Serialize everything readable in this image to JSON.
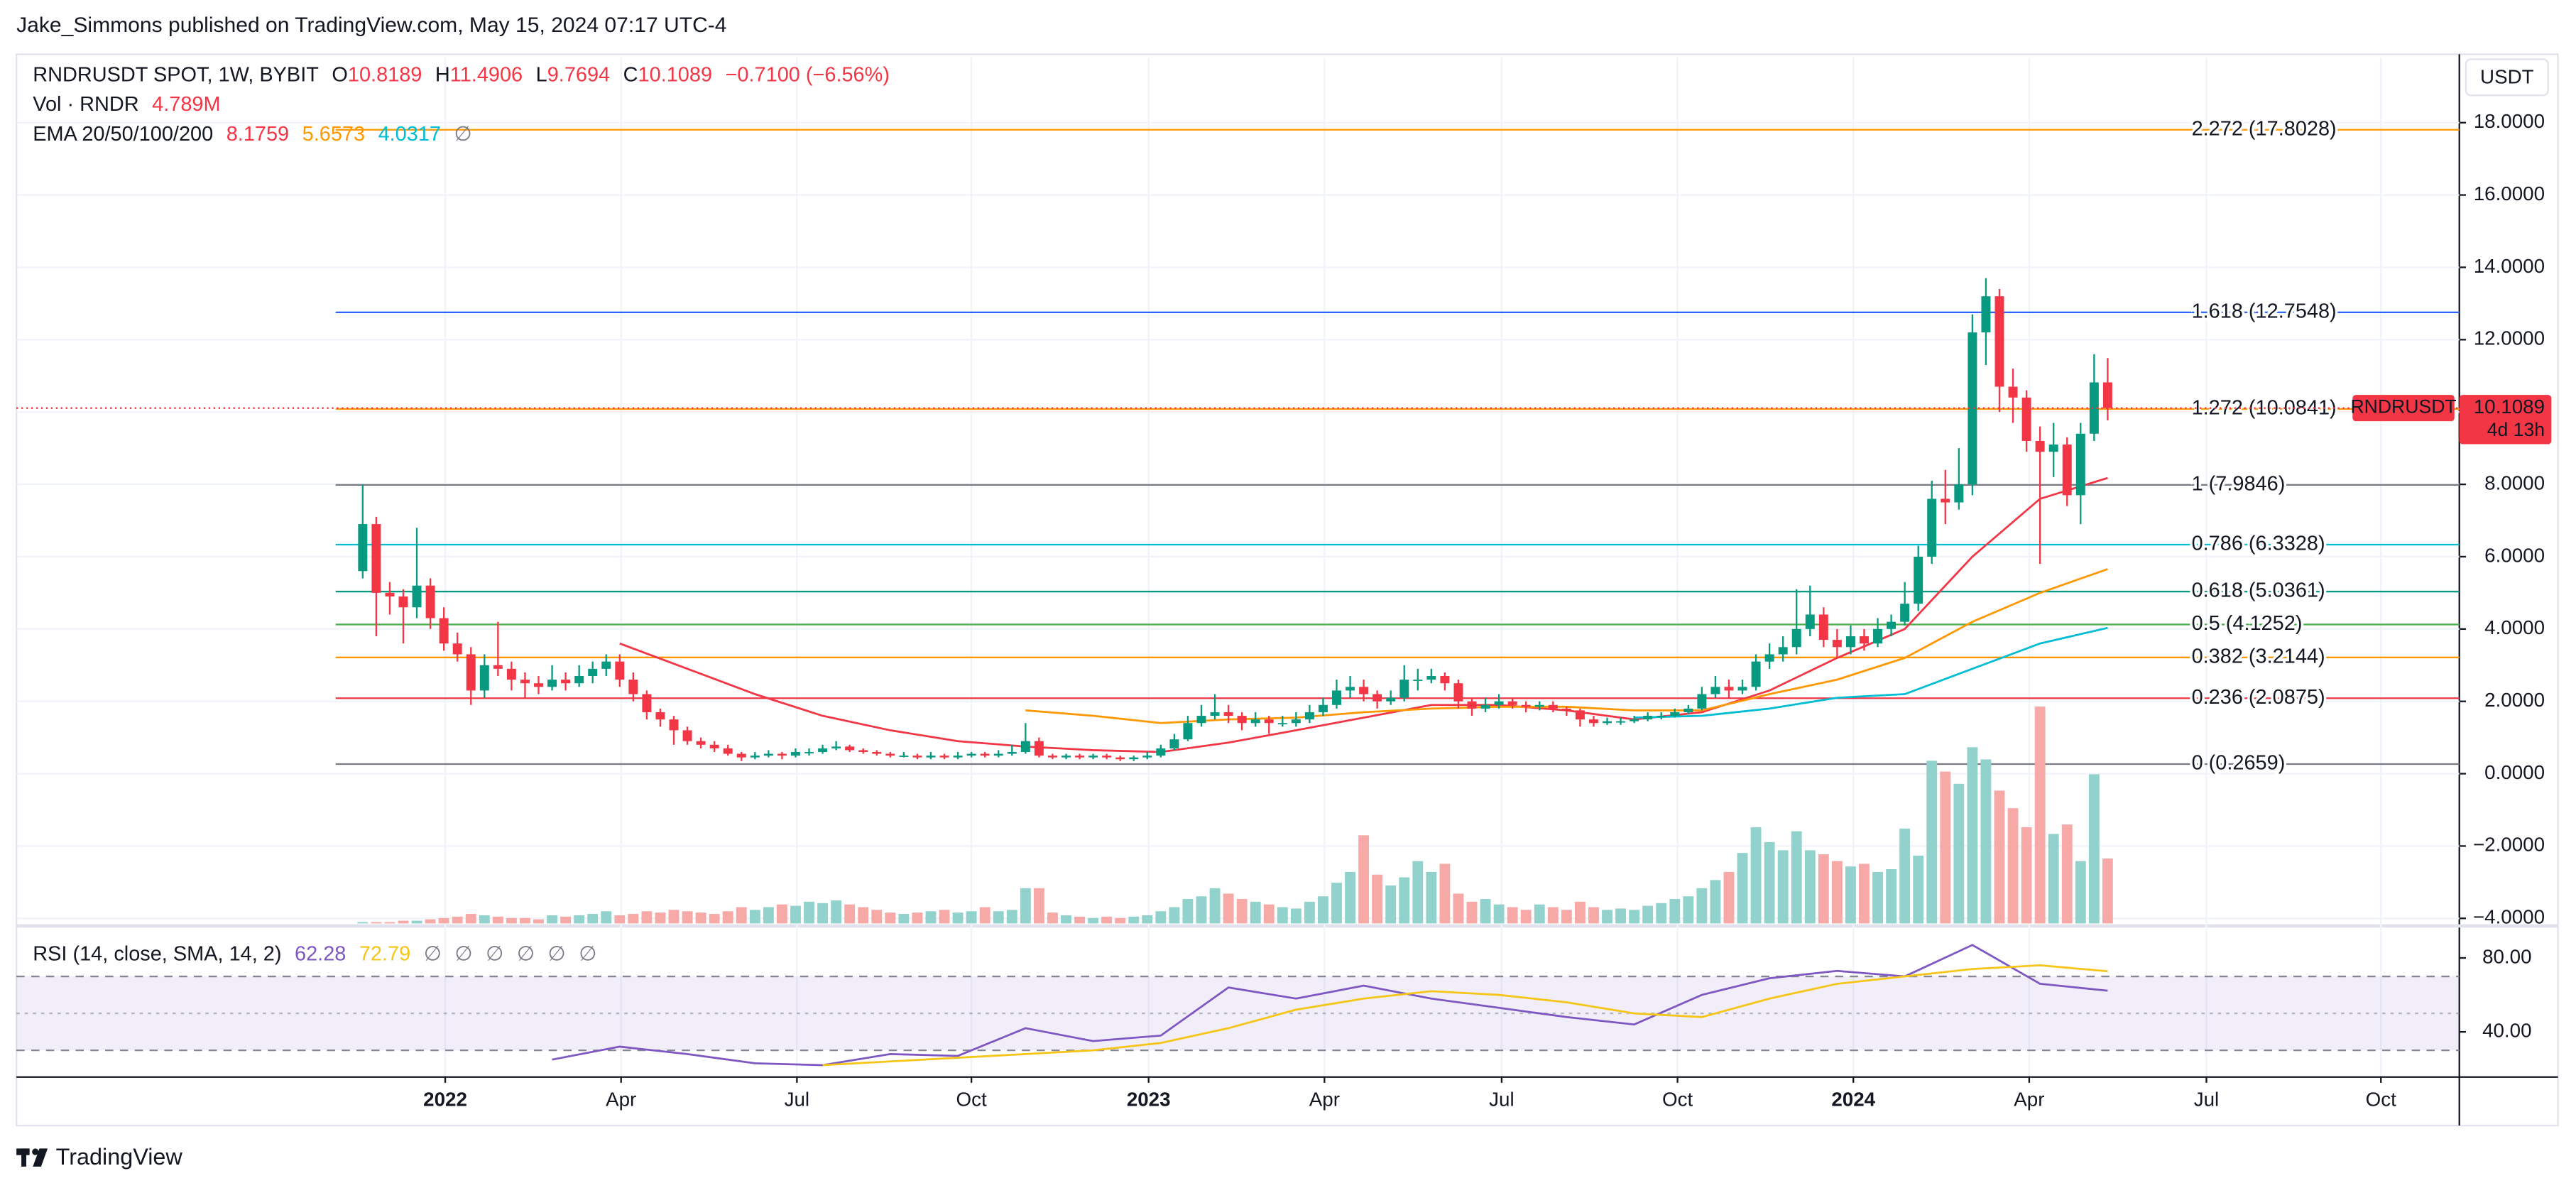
{
  "header": {
    "byline": "Jake_Simmons published on TradingView.com, May 15, 2024 07:17 UTC-4"
  },
  "chart_data": {
    "type": "candlestick",
    "title": "RNDRUSDT SPOT, 1W, BYBIT",
    "ohlc_prefixes": [
      "O",
      "H",
      "L",
      "C"
    ],
    "change": "−0.7100 (−6.56%)",
    "currency": "USDT",
    "symbol": "RNDRUSDT",
    "countdown": "4d 13h",
    "up_color": "#089981",
    "down_color": "#f23645",
    "volume_up_color": "#92d2cc",
    "volume_down_color": "#f7a9a7",
    "grid": true,
    "xlim": [
      -25.6,
      155
    ],
    "xticks": [
      {
        "value": 6.1,
        "label": "2022"
      },
      {
        "value": 19.1,
        "label": "Apr"
      },
      {
        "value": 32.1,
        "label": "Jul"
      },
      {
        "value": 45,
        "label": "Oct"
      },
      {
        "value": 58.1,
        "label": "2023"
      },
      {
        "value": 71.1,
        "label": "Apr"
      },
      {
        "value": 84.2,
        "label": "Jul"
      },
      {
        "value": 97.2,
        "label": "Oct"
      },
      {
        "value": 110.2,
        "label": "2024"
      },
      {
        "value": 123.2,
        "label": "Apr"
      },
      {
        "value": 136.3,
        "label": "Jul"
      },
      {
        "value": 149.2,
        "label": "Oct"
      }
    ],
    "ylim": [
      -4.14,
      19.8
    ],
    "yticks": [
      {
        "value": -4,
        "label": "−4.0000"
      },
      {
        "value": -2,
        "label": "−2.0000"
      },
      {
        "value": 0,
        "label": "0.0000"
      },
      {
        "value": 2,
        "label": "2.0000"
      },
      {
        "value": 4,
        "label": "4.0000"
      },
      {
        "value": 6,
        "label": "6.0000"
      },
      {
        "value": 8,
        "label": "8.0000"
      },
      {
        "value": 10,
        "label": "10.0000"
      },
      {
        "value": 12,
        "label": "12.0000"
      },
      {
        "value": 14,
        "label": "14.0000"
      },
      {
        "value": 16,
        "label": "16.0000"
      },
      {
        "value": 18,
        "label": "18.0000"
      }
    ],
    "ohlc": [
      [
        5.6,
        8.0,
        5.4,
        6.9
      ],
      [
        6.9,
        7.1,
        3.8,
        5.0
      ],
      [
        5.0,
        5.3,
        4.4,
        4.9
      ],
      [
        4.9,
        5.1,
        3.6,
        4.6
      ],
      [
        4.6,
        6.8,
        4.3,
        5.2
      ],
      [
        5.2,
        5.4,
        4.0,
        4.3
      ],
      [
        4.3,
        4.6,
        3.4,
        3.6
      ],
      [
        3.6,
        3.9,
        3.1,
        3.3
      ],
      [
        3.3,
        3.5,
        1.9,
        2.3
      ],
      [
        2.3,
        3.3,
        2.1,
        3.0
      ],
      [
        3.0,
        4.2,
        2.7,
        2.9
      ],
      [
        2.9,
        3.1,
        2.3,
        2.6
      ],
      [
        2.6,
        2.8,
        2.1,
        2.5
      ],
      [
        2.5,
        2.7,
        2.2,
        2.4
      ],
      [
        2.4,
        3.0,
        2.3,
        2.6
      ],
      [
        2.6,
        2.8,
        2.3,
        2.5
      ],
      [
        2.5,
        3.0,
        2.4,
        2.7
      ],
      [
        2.7,
        3.1,
        2.5,
        2.9
      ],
      [
        2.9,
        3.3,
        2.7,
        3.1
      ],
      [
        3.1,
        3.3,
        2.4,
        2.6
      ],
      [
        2.6,
        2.8,
        2.0,
        2.2
      ],
      [
        2.2,
        2.3,
        1.5,
        1.7
      ],
      [
        1.7,
        1.8,
        1.3,
        1.5
      ],
      [
        1.5,
        1.6,
        0.8,
        1.2
      ],
      [
        1.2,
        1.3,
        0.8,
        0.9
      ],
      [
        0.9,
        1.0,
        0.7,
        0.8
      ],
      [
        0.8,
        0.9,
        0.6,
        0.7
      ],
      [
        0.7,
        0.8,
        0.5,
        0.55
      ],
      [
        0.55,
        0.6,
        0.35,
        0.45
      ],
      [
        0.45,
        0.6,
        0.4,
        0.5
      ],
      [
        0.5,
        0.65,
        0.45,
        0.55
      ],
      [
        0.55,
        0.6,
        0.4,
        0.5
      ],
      [
        0.5,
        0.7,
        0.45,
        0.6
      ],
      [
        0.6,
        0.7,
        0.5,
        0.6
      ],
      [
        0.6,
        0.8,
        0.55,
        0.7
      ],
      [
        0.7,
        0.9,
        0.65,
        0.75
      ],
      [
        0.75,
        0.8,
        0.6,
        0.65
      ],
      [
        0.65,
        0.7,
        0.55,
        0.6
      ],
      [
        0.6,
        0.65,
        0.5,
        0.55
      ],
      [
        0.55,
        0.6,
        0.45,
        0.5
      ],
      [
        0.5,
        0.6,
        0.45,
        0.5
      ],
      [
        0.5,
        0.55,
        0.4,
        0.45
      ],
      [
        0.45,
        0.6,
        0.4,
        0.5
      ],
      [
        0.5,
        0.55,
        0.4,
        0.45
      ],
      [
        0.45,
        0.6,
        0.4,
        0.5
      ],
      [
        0.5,
        0.6,
        0.45,
        0.55
      ],
      [
        0.55,
        0.6,
        0.45,
        0.5
      ],
      [
        0.5,
        0.65,
        0.45,
        0.55
      ],
      [
        0.55,
        0.8,
        0.5,
        0.6
      ],
      [
        0.6,
        1.4,
        0.55,
        0.9
      ],
      [
        0.9,
        1.0,
        0.45,
        0.5
      ],
      [
        0.5,
        0.55,
        0.4,
        0.45
      ],
      [
        0.45,
        0.55,
        0.4,
        0.5
      ],
      [
        0.5,
        0.55,
        0.4,
        0.45
      ],
      [
        0.45,
        0.55,
        0.4,
        0.5
      ],
      [
        0.5,
        0.55,
        0.4,
        0.45
      ],
      [
        0.45,
        0.5,
        0.35,
        0.4
      ],
      [
        0.4,
        0.5,
        0.35,
        0.45
      ],
      [
        0.45,
        0.6,
        0.4,
        0.5
      ],
      [
        0.5,
        0.8,
        0.45,
        0.7
      ],
      [
        0.7,
        1.1,
        0.65,
        0.95
      ],
      [
        0.95,
        1.6,
        0.9,
        1.4
      ],
      [
        1.4,
        1.9,
        1.3,
        1.6
      ],
      [
        1.6,
        2.2,
        1.5,
        1.7
      ],
      [
        1.7,
        1.9,
        1.4,
        1.6
      ],
      [
        1.6,
        1.7,
        1.2,
        1.4
      ],
      [
        1.4,
        1.7,
        1.3,
        1.5
      ],
      [
        1.5,
        1.6,
        1.1,
        1.4
      ],
      [
        1.4,
        1.6,
        1.3,
        1.4
      ],
      [
        1.4,
        1.7,
        1.3,
        1.5
      ],
      [
        1.5,
        1.9,
        1.4,
        1.7
      ],
      [
        1.7,
        2.1,
        1.6,
        1.9
      ],
      [
        1.9,
        2.6,
        1.8,
        2.3
      ],
      [
        2.3,
        2.7,
        2.1,
        2.4
      ],
      [
        2.4,
        2.6,
        2.0,
        2.2
      ],
      [
        2.2,
        2.3,
        1.8,
        2.0
      ],
      [
        2.0,
        2.3,
        1.9,
        2.1
      ],
      [
        2.1,
        3.0,
        2.0,
        2.6
      ],
      [
        2.6,
        2.9,
        2.3,
        2.6
      ],
      [
        2.6,
        2.9,
        2.5,
        2.7
      ],
      [
        2.7,
        2.8,
        2.3,
        2.5
      ],
      [
        2.5,
        2.6,
        1.8,
        2.0
      ],
      [
        2.0,
        2.1,
        1.6,
        1.8
      ],
      [
        1.8,
        2.1,
        1.7,
        1.9
      ],
      [
        1.9,
        2.2,
        1.8,
        2.0
      ],
      [
        2.0,
        2.1,
        1.8,
        1.9
      ],
      [
        1.9,
        2.0,
        1.7,
        1.85
      ],
      [
        1.85,
        2.0,
        1.75,
        1.9
      ],
      [
        1.9,
        2.0,
        1.7,
        1.8
      ],
      [
        1.8,
        1.85,
        1.6,
        1.75
      ],
      [
        1.75,
        1.8,
        1.3,
        1.5
      ],
      [
        1.5,
        1.6,
        1.3,
        1.4
      ],
      [
        1.4,
        1.55,
        1.35,
        1.45
      ],
      [
        1.45,
        1.55,
        1.35,
        1.45
      ],
      [
        1.45,
        1.6,
        1.4,
        1.5
      ],
      [
        1.5,
        1.7,
        1.45,
        1.6
      ],
      [
        1.6,
        1.7,
        1.5,
        1.6
      ],
      [
        1.6,
        1.8,
        1.55,
        1.7
      ],
      [
        1.7,
        1.9,
        1.65,
        1.8
      ],
      [
        1.8,
        2.4,
        1.75,
        2.2
      ],
      [
        2.2,
        2.7,
        2.1,
        2.4
      ],
      [
        2.4,
        2.6,
        2.1,
        2.3
      ],
      [
        2.3,
        2.6,
        2.2,
        2.4
      ],
      [
        2.4,
        3.3,
        2.3,
        3.1
      ],
      [
        3.1,
        3.6,
        2.9,
        3.3
      ],
      [
        3.3,
        3.8,
        3.1,
        3.5
      ],
      [
        3.5,
        5.1,
        3.3,
        4.0
      ],
      [
        4.0,
        5.2,
        3.8,
        4.4
      ],
      [
        4.4,
        4.6,
        3.5,
        3.7
      ],
      [
        3.7,
        4.0,
        3.2,
        3.5
      ],
      [
        3.5,
        4.1,
        3.3,
        3.8
      ],
      [
        3.8,
        4.0,
        3.4,
        3.6
      ],
      [
        3.6,
        4.3,
        3.5,
        4.0
      ],
      [
        4.0,
        4.4,
        3.8,
        4.2
      ],
      [
        4.2,
        5.3,
        4.1,
        4.7
      ],
      [
        4.7,
        6.3,
        4.5,
        6.0
      ],
      [
        6.0,
        8.1,
        5.8,
        7.6
      ],
      [
        7.6,
        8.4,
        6.9,
        7.5
      ],
      [
        7.5,
        9.0,
        7.3,
        8.0
      ],
      [
        8.0,
        12.7,
        7.7,
        12.2
      ],
      [
        12.2,
        13.7,
        11.3,
        13.2
      ],
      [
        13.2,
        13.4,
        10.0,
        10.7
      ],
      [
        10.7,
        11.2,
        9.7,
        10.4
      ],
      [
        10.4,
        10.6,
        8.9,
        9.2
      ],
      [
        9.2,
        9.6,
        5.8,
        8.9
      ],
      [
        8.9,
        9.7,
        8.2,
        9.1
      ],
      [
        9.1,
        9.3,
        7.4,
        7.7
      ],
      [
        7.7,
        9.7,
        6.9,
        9.4
      ],
      [
        9.4,
        11.6,
        9.2,
        10.8189
      ],
      [
        10.8189,
        11.4906,
        9.7694,
        10.1089
      ]
    ],
    "volume": {
      "name": "Vol · RNDR",
      "last_label": "4.789M",
      "values": [
        0.1,
        0.1,
        0.1,
        0.2,
        0.2,
        0.3,
        0.4,
        0.5,
        0.7,
        0.6,
        0.5,
        0.4,
        0.4,
        0.3,
        0.6,
        0.5,
        0.6,
        0.7,
        0.9,
        0.6,
        0.7,
        0.9,
        0.8,
        1.0,
        0.9,
        0.8,
        0.7,
        0.9,
        1.2,
        1.0,
        1.2,
        1.4,
        1.3,
        1.6,
        1.5,
        1.7,
        1.4,
        1.2,
        1.0,
        0.8,
        0.7,
        0.8,
        0.9,
        1.0,
        0.8,
        0.9,
        1.2,
        0.9,
        1.0,
        2.6,
        2.6,
        0.8,
        0.6,
        0.5,
        0.4,
        0.5,
        0.4,
        0.5,
        0.6,
        0.9,
        1.2,
        1.8,
        2.0,
        2.6,
        2.2,
        1.8,
        1.6,
        1.4,
        1.2,
        1.1,
        1.6,
        2.0,
        3.0,
        3.8,
        6.5,
        3.6,
        2.8,
        3.4,
        4.6,
        3.8,
        4.4,
        2.2,
        1.6,
        1.8,
        1.4,
        1.2,
        1.0,
        1.4,
        1.2,
        1.0,
        1.6,
        1.2,
        1.0,
        1.1,
        1.0,
        1.3,
        1.5,
        1.8,
        2.0,
        2.6,
        3.2,
        3.8,
        5.2,
        7.1,
        6.0,
        5.4,
        6.8,
        5.4,
        5.1,
        4.6,
        4.2,
        4.4,
        3.8,
        4.0,
        7.0,
        5.0,
        12.0,
        11.2,
        10.3,
        13.0,
        12.1,
        9.8,
        8.5,
        7.1,
        16.0,
        6.6,
        7.3,
        4.6,
        11.0,
        4.789
      ]
    },
    "ema": {
      "name": "EMA 20/50/100/200",
      "na_label": "∅",
      "x": [
        19,
        24,
        29,
        34,
        39,
        44,
        49,
        54,
        59,
        64,
        69,
        74,
        79,
        84,
        89,
        94,
        99,
        104,
        109,
        114,
        119,
        124,
        129
      ],
      "series": [
        {
          "color": "#f23645",
          "values": [
            3.6,
            2.9,
            2.2,
            1.6,
            1.2,
            0.9,
            0.75,
            0.65,
            0.6,
            0.86,
            1.2,
            1.55,
            1.9,
            1.9,
            1.75,
            1.5,
            1.7,
            2.3,
            3.2,
            4.0,
            6.0,
            7.6,
            8.1759
          ]
        },
        {
          "color": "#ff9800",
          "values": [
            null,
            null,
            null,
            null,
            null,
            null,
            1.75,
            1.6,
            1.4,
            1.5,
            1.55,
            1.7,
            1.8,
            1.85,
            1.85,
            1.75,
            1.75,
            2.2,
            2.6,
            3.2,
            4.2,
            5.0,
            5.6573
          ]
        },
        {
          "color": "#00bcd4",
          "values": [
            null,
            null,
            null,
            null,
            null,
            null,
            null,
            null,
            null,
            null,
            null,
            null,
            null,
            null,
            null,
            1.55,
            1.6,
            1.8,
            2.1,
            2.2,
            2.9,
            3.6,
            4.0317
          ]
        }
      ]
    },
    "fib_levels": [
      {
        "value": 17.8028,
        "label": "2.272 (17.8028)",
        "color": "#ff9800"
      },
      {
        "value": 12.7548,
        "label": "1.618 (12.7548)",
        "color": "#2962ff"
      },
      {
        "value": 10.0841,
        "label": "1.272 (10.0841)",
        "color": "#ff9800"
      },
      {
        "value": 7.9846,
        "label": "1 (7.9846)",
        "color": "#787b86"
      },
      {
        "value": 6.3328,
        "label": "0.786 (6.3328)",
        "color": "#00bcd4"
      },
      {
        "value": 5.0361,
        "label": "0.618 (5.0361)",
        "color": "#089981"
      },
      {
        "value": 4.1252,
        "label": "0.5 (4.1252)",
        "color": "#4caf50"
      },
      {
        "value": 3.2144,
        "label": "0.382 (3.2144)",
        "color": "#ff9800"
      },
      {
        "value": 2.0875,
        "label": "0.236 (2.0875)",
        "color": "#f23645"
      },
      {
        "value": 0.2659,
        "label": "0 (0.2659)",
        "color": "#787b86"
      }
    ],
    "rsi": {
      "name": "RSI (14, close, SMA, 14, 2)",
      "na_labels": [
        "∅",
        "∅",
        "∅",
        "∅",
        "∅",
        "∅"
      ],
      "ylim": [
        16,
        96
      ],
      "yticks": [
        {
          "value": 80,
          "label": "80.00"
        },
        {
          "value": 40,
          "label": "40.00"
        }
      ],
      "levels": [
        70,
        50,
        30
      ],
      "band_color": "#7e57c2",
      "x": [
        14,
        19,
        24,
        29,
        34,
        39,
        44,
        49,
        54,
        59,
        64,
        69,
        74,
        79,
        84,
        89,
        94,
        99,
        104,
        109,
        114,
        119,
        124,
        129
      ],
      "series": [
        {
          "color": "#7e57c2",
          "values": [
            25,
            32,
            28,
            23,
            22,
            28,
            27,
            42,
            35,
            38,
            64,
            58,
            65,
            58,
            53,
            48,
            44,
            60,
            69,
            73,
            70,
            87,
            66,
            62.28
          ]
        },
        {
          "color": "#f5c518",
          "values": [
            null,
            null,
            null,
            null,
            22,
            24,
            26,
            28,
            30,
            34,
            42,
            52,
            58,
            62,
            60,
            56,
            50,
            48,
            58,
            66,
            70,
            74,
            76,
            72.79
          ]
        }
      ]
    }
  },
  "footer": {
    "brand": "TradingView"
  }
}
